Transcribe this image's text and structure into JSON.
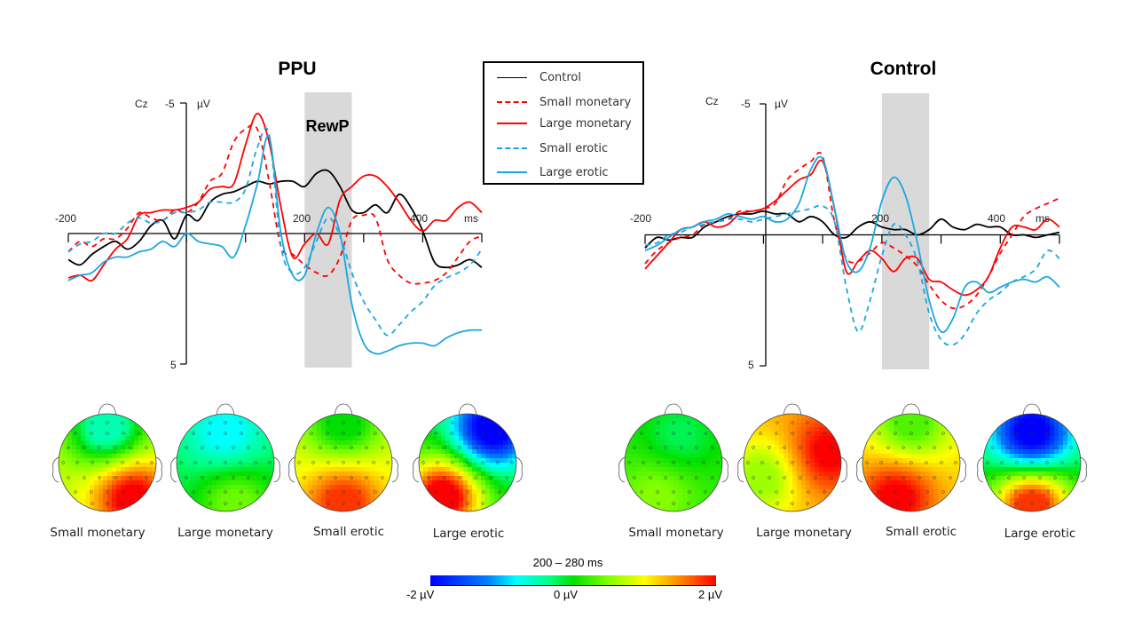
{
  "chart_data": [
    {
      "type": "line",
      "title": "PPU",
      "channel": "Cz",
      "xlabel": "ms",
      "ylabel": "µV",
      "xlim": [
        -200,
        500
      ],
      "ylim": [
        -5,
        5
      ],
      "y_inverted": true,
      "xticks": [
        -200,
        200,
        400
      ],
      "xtick_marks": [
        -200,
        0,
        100,
        200,
        300,
        400,
        500
      ],
      "yticks": [
        -5,
        5
      ],
      "shaded_window": {
        "from": 200,
        "to": 280,
        "label": "RewP"
      },
      "x": [
        -200,
        -180,
        -160,
        -140,
        -120,
        -100,
        -80,
        -60,
        -40,
        -20,
        0,
        20,
        40,
        60,
        80,
        100,
        120,
        140,
        160,
        180,
        200,
        220,
        240,
        260,
        280,
        300,
        320,
        340,
        360,
        380,
        400,
        420,
        440,
        460,
        480,
        500
      ],
      "series": [
        {
          "name": "Control",
          "color": "#000000",
          "dash": false,
          "values": [
            1.0,
            1.2,
            0.8,
            0.5,
            0.3,
            0.6,
            0.3,
            -0.3,
            -0.5,
            0.2,
            -0.7,
            -0.5,
            -1.2,
            -1.5,
            -1.6,
            -1.8,
            -2.0,
            -1.9,
            -2.0,
            -2.0,
            -1.8,
            -2.3,
            -2.4,
            -1.8,
            -0.9,
            -0.8,
            -1.1,
            -0.8,
            -1.5,
            -1.0,
            -0.1,
            1.1,
            1.3,
            1.2,
            1.0,
            1.3
          ]
        },
        {
          "name": "Small monetary",
          "color": "#ff0000",
          "dash": true,
          "values": [
            0.7,
            0.3,
            0.5,
            0.2,
            0.2,
            -0.2,
            -0.8,
            -0.6,
            -0.5,
            -0.9,
            -0.8,
            -1.2,
            -2.0,
            -2.3,
            -3.5,
            -4.0,
            -4.0,
            -2.0,
            0.5,
            0.8,
            1.2,
            1.5,
            1.6,
            0.9,
            -0.5,
            -0.7,
            -0.6,
            1.0,
            1.6,
            1.9,
            1.9,
            1.8,
            1.5,
            0.9,
            0.3,
            0.1
          ]
        },
        {
          "name": "Large monetary",
          "color": "#ff0000",
          "dash": false,
          "values": [
            1.7,
            1.6,
            1.8,
            1.2,
            0.6,
            0.2,
            -0.7,
            -0.8,
            -0.9,
            -0.9,
            -1.0,
            -1.2,
            -1.7,
            -1.8,
            -1.9,
            -3.4,
            -4.6,
            -3.5,
            -1.0,
            0.9,
            0.4,
            0.0,
            0.4,
            -1.3,
            -1.8,
            -2.2,
            -2.2,
            -1.8,
            -1.2,
            -0.5,
            -0.1,
            -0.5,
            -0.5,
            -1.0,
            -1.2,
            -0.8
          ]
        },
        {
          "name": "Small erotic",
          "color": "#1aa7e0",
          "dash": true,
          "values": [
            0.7,
            0.4,
            0.3,
            0.0,
            0.0,
            -0.4,
            -0.6,
            -0.4,
            -0.5,
            -0.8,
            -0.8,
            -0.9,
            -1.2,
            -1.2,
            -1.2,
            -1.7,
            -3.3,
            -3.8,
            0.5,
            1.5,
            1.3,
            0.3,
            -0.6,
            0.1,
            1.5,
            2.6,
            3.3,
            3.9,
            3.5,
            3.0,
            2.6,
            2.0,
            1.7,
            1.5,
            1.2,
            0.6
          ]
        },
        {
          "name": "Large erotic",
          "color": "#1aa7e0",
          "dash": false,
          "values": [
            1.8,
            1.6,
            1.5,
            1.1,
            0.9,
            0.9,
            0.7,
            0.6,
            0.3,
            0.5,
            0.0,
            0.3,
            0.4,
            0.5,
            0.9,
            -0.3,
            -1.9,
            -3.7,
            0.0,
            1.6,
            1.6,
            0.0,
            -1.0,
            0.0,
            2.7,
            4.2,
            4.6,
            4.5,
            4.3,
            4.2,
            4.2,
            4.3,
            4.0,
            3.8,
            3.7,
            3.7
          ]
        }
      ]
    },
    {
      "type": "line",
      "title": "Control",
      "channel": "Cz",
      "xlabel": "ms",
      "ylabel": "µV",
      "xlim": [
        -200,
        500
      ],
      "ylim": [
        -5,
        5
      ],
      "y_inverted": true,
      "xticks": [
        -200,
        200,
        400
      ],
      "xtick_marks": [
        -200,
        0,
        100,
        200,
        300,
        400,
        500
      ],
      "yticks": [
        -5,
        5
      ],
      "shaded_window": {
        "from": 200,
        "to": 280,
        "label": ""
      },
      "x": [
        -200,
        -180,
        -160,
        -140,
        -120,
        -100,
        -80,
        -60,
        -40,
        -20,
        0,
        20,
        40,
        60,
        80,
        100,
        120,
        140,
        160,
        180,
        200,
        220,
        240,
        260,
        280,
        300,
        320,
        340,
        360,
        380,
        400,
        420,
        440,
        460,
        480,
        500
      ],
      "series": [
        {
          "name": "Control",
          "color": "#000000",
          "dash": false,
          "values": [
            0.5,
            0.1,
            0.2,
            0.1,
            0.1,
            -0.3,
            -0.5,
            -0.7,
            -0.8,
            -0.8,
            -0.9,
            -0.8,
            -0.8,
            -0.5,
            -0.7,
            -0.5,
            0.0,
            0.1,
            -0.3,
            -0.5,
            -0.3,
            -0.2,
            -0.2,
            0.0,
            -0.2,
            -0.6,
            -0.3,
            -0.2,
            -0.4,
            -0.3,
            -0.3,
            0.0,
            0.0,
            0.1,
            0.0,
            -0.1
          ]
        },
        {
          "name": "Small monetary",
          "color": "#ff0000",
          "dash": true,
          "values": [
            1.1,
            0.6,
            0.3,
            0.1,
            0.0,
            -0.4,
            -0.5,
            -0.6,
            -0.9,
            -0.9,
            -1.0,
            -1.2,
            -2.1,
            -2.5,
            -2.8,
            -3.0,
            -0.5,
            0.9,
            1.0,
            0.7,
            0.3,
            0.5,
            0.8,
            1.2,
            1.9,
            2.5,
            2.8,
            2.7,
            2.3,
            1.6,
            0.7,
            0.0,
            -0.7,
            -1.0,
            -1.2,
            -1.4
          ]
        },
        {
          "name": "Large monetary",
          "color": "#ff0000",
          "dash": false,
          "values": [
            1.3,
            0.8,
            0.3,
            -0.2,
            -0.3,
            -0.5,
            -0.3,
            -0.4,
            -0.8,
            -0.9,
            -1.0,
            -1.3,
            -1.7,
            -2.1,
            -2.3,
            -2.8,
            -1.0,
            1.4,
            1.0,
            0.6,
            0.9,
            1.4,
            0.9,
            0.9,
            1.7,
            1.8,
            2.1,
            2.3,
            2.1,
            1.6,
            0.5,
            -0.3,
            -0.3,
            -0.2,
            -0.6,
            -0.3
          ]
        },
        {
          "name": "Small erotic",
          "color": "#1aa7e0",
          "dash": true,
          "values": [
            0.4,
            0.3,
            0.0,
            -0.1,
            -0.3,
            -0.4,
            -0.5,
            -0.6,
            -0.6,
            -0.5,
            -0.6,
            -0.7,
            -0.8,
            -0.9,
            -1.0,
            -1.1,
            -0.5,
            2.0,
            3.7,
            2.5,
            0.8,
            -0.4,
            0.0,
            1.0,
            3.0,
            4.0,
            4.2,
            3.8,
            3.0,
            2.5,
            2.2,
            1.8,
            1.6,
            1.3,
            0.6,
            0.9
          ]
        },
        {
          "name": "Large erotic",
          "color": "#1aa7e0",
          "dash": false,
          "values": [
            0.6,
            0.4,
            0.1,
            -0.2,
            -0.3,
            -0.5,
            -0.6,
            -0.8,
            -0.7,
            -0.6,
            -0.7,
            -0.5,
            -0.6,
            -1.2,
            -2.5,
            -2.9,
            -1.0,
            1.0,
            1.4,
            0.5,
            -1.3,
            -2.2,
            -1.5,
            0.3,
            2.5,
            3.7,
            3.2,
            2.0,
            1.8,
            2.2,
            2.0,
            1.8,
            1.7,
            1.8,
            1.6,
            2.0
          ]
        }
      ]
    },
    {
      "type": "heatmap",
      "subtype": "scalp-topography",
      "title": "200 – 280 ms",
      "groups": [
        {
          "group": "PPU",
          "maps": [
            {
              "label": "Small monetary",
              "pattern": "posterior-right positive, frontal slightly negative",
              "max_uv": 2.0,
              "min_uv": -0.5
            },
            {
              "label": "Large monetary",
              "pattern": "mostly near zero, frontal slightly negative",
              "max_uv": 0.4,
              "min_uv": -0.8
            },
            {
              "label": "Small erotic",
              "pattern": "posterior positive",
              "max_uv": 1.8,
              "min_uv": 0.0
            },
            {
              "label": "Large erotic",
              "pattern": "frontal-right negative, posterior-left positive",
              "max_uv": 2.0,
              "min_uv": -2.0
            }
          ]
        },
        {
          "group": "Control",
          "maps": [
            {
              "label": "Small monetary",
              "pattern": "near zero",
              "max_uv": 0.5,
              "min_uv": -0.2
            },
            {
              "label": "Large monetary",
              "pattern": "right positive, broadly positive",
              "max_uv": 2.0,
              "min_uv": 0.6
            },
            {
              "label": "Small erotic",
              "pattern": "posterior positive",
              "max_uv": 2.0,
              "min_uv": 0.3
            },
            {
              "label": "Large erotic",
              "pattern": "frontal negative, posterior positive",
              "max_uv": 1.8,
              "min_uv": -2.0
            }
          ]
        }
      ],
      "colorbar": {
        "min_label": "-2 µV",
        "mid_label": "0 µV",
        "max_label": "2 µV",
        "range": [
          -2,
          2
        ],
        "colormap": "jet"
      }
    }
  ],
  "legend": {
    "items": [
      {
        "label": "Control",
        "color": "#000000",
        "dash": false
      },
      {
        "label": "Small monetary",
        "color": "#ff0000",
        "dash": true
      },
      {
        "label": "Large monetary",
        "color": "#ff0000",
        "dash": false
      },
      {
        "label": "Small erotic",
        "color": "#1aa7e0",
        "dash": true
      },
      {
        "label": "Large erotic",
        "color": "#1aa7e0",
        "dash": false
      }
    ]
  },
  "labels": {
    "ppu_title": "PPU",
    "control_title": "Control",
    "channel": "Cz",
    "unit": "µV",
    "ms": "ms",
    "ytick_top": "-5",
    "ytick_bottom": "5",
    "xtick_neg200": "-200",
    "xtick_200": "200",
    "xtick_400": "400",
    "rewp": "RewP",
    "colorbar_title": "200 – 280 ms",
    "colorbar_min": "-2 µV",
    "colorbar_mid": "0 µV",
    "colorbar_max": "2 µV"
  }
}
